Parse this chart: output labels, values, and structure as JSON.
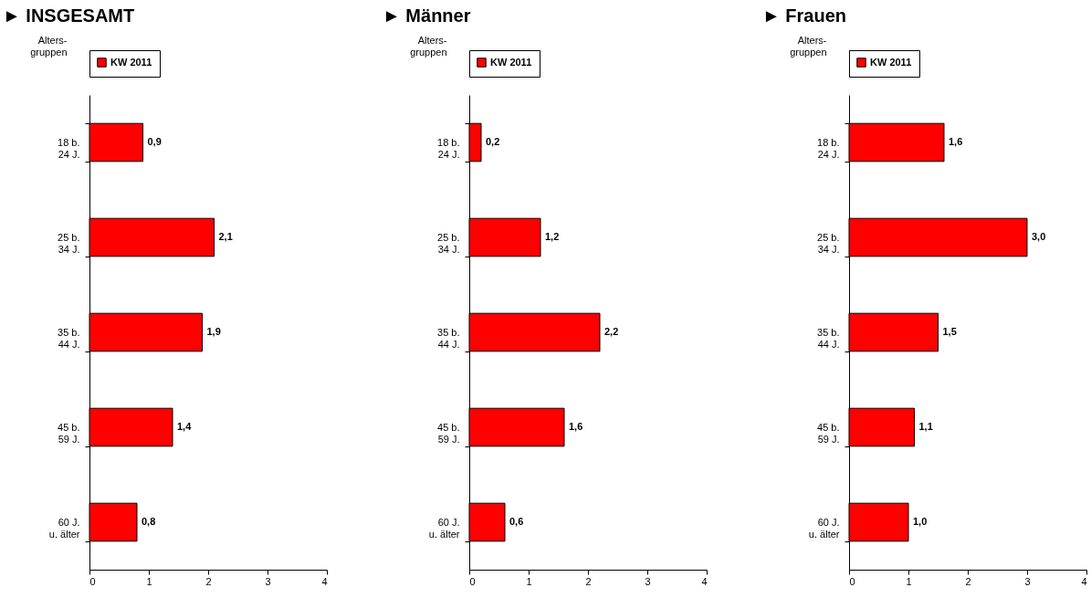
{
  "chart_data": [
    {
      "type": "bar",
      "orientation": "horizontal",
      "title": "► INSGESAMT",
      "ylabel": "Alters-\ngruppen",
      "categories": [
        "18 b.\n24 J.",
        "25 b.\n34 J.",
        "35 b.\n44 J.",
        "45 b.\n59 J.",
        "60 J.\nu. älter"
      ],
      "series": [
        {
          "name": "KW 2011",
          "color": "#ff0000",
          "values": [
            0.9,
            2.1,
            1.9,
            1.4,
            0.8
          ],
          "value_labels": [
            "0,9",
            "2,1",
            "1,9",
            "1,4",
            "0,8"
          ]
        }
      ],
      "xlim": [
        0,
        4
      ],
      "xticks": [
        0,
        1,
        2,
        3,
        4
      ],
      "legend": "top",
      "grid": false
    },
    {
      "type": "bar",
      "orientation": "horizontal",
      "title": "► Männer",
      "ylabel": "Alters-\ngruppen",
      "categories": [
        "18 b.\n24 J.",
        "25 b.\n34 J.",
        "35 b.\n44 J.",
        "45 b.\n59 J.",
        "60 J.\nu. älter"
      ],
      "series": [
        {
          "name": "KW 2011",
          "color": "#ff0000",
          "values": [
            0.2,
            1.2,
            2.2,
            1.6,
            0.6
          ],
          "value_labels": [
            "0,2",
            "1,2",
            "2,2",
            "1,6",
            "0,6"
          ]
        }
      ],
      "xlim": [
        0,
        4
      ],
      "xticks": [
        0,
        1,
        2,
        3,
        4
      ],
      "legend": "top",
      "grid": false
    },
    {
      "type": "bar",
      "orientation": "horizontal",
      "title": "► Frauen",
      "ylabel": "Alters-\ngruppen",
      "categories": [
        "18 b.\n24 J.",
        "25 b.\n34 J.",
        "35 b.\n44 J.",
        "45 b.\n59 J.",
        "60 J.\nu. älter"
      ],
      "series": [
        {
          "name": "KW 2011",
          "color": "#ff0000",
          "values": [
            1.6,
            3.0,
            1.5,
            1.1,
            1.0
          ],
          "value_labels": [
            "1,6",
            "3,0",
            "1,5",
            "1,1",
            "1,0"
          ]
        }
      ],
      "xlim": [
        0,
        4
      ],
      "xticks": [
        0,
        1,
        2,
        3,
        4
      ],
      "legend": "top",
      "grid": false
    }
  ]
}
